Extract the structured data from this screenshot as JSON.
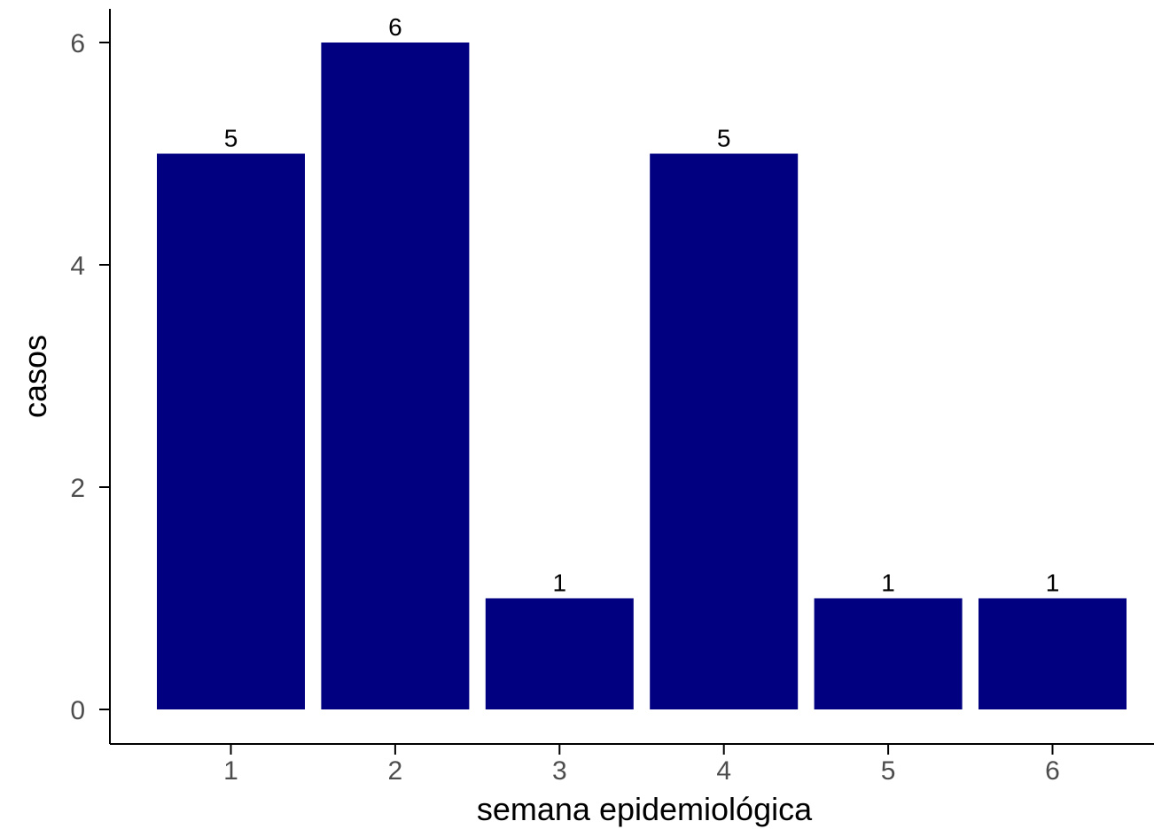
{
  "chart_data": {
    "type": "bar",
    "categories": [
      "1",
      "2",
      "3",
      "4",
      "5",
      "6"
    ],
    "values": [
      5,
      6,
      1,
      5,
      1,
      1
    ],
    "data_labels": [
      "5",
      "6",
      "1",
      "5",
      "1",
      "1"
    ],
    "xlabel": "semana epidemiológica",
    "ylabel": "casos",
    "ylim": [
      0,
      6
    ],
    "yticks": [
      0,
      2,
      4,
      6
    ],
    "ytick_labels": [
      "0",
      "2",
      "4",
      "6"
    ],
    "grid": false,
    "bar_color": "#000080"
  }
}
